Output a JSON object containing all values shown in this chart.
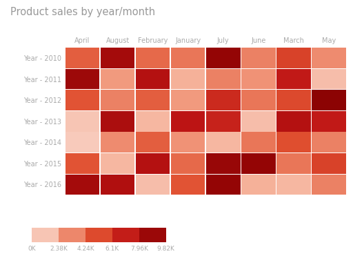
{
  "title": "Product sales by year/month",
  "columns": [
    "April",
    "August",
    "February",
    "January",
    "July",
    "June",
    "March",
    "May"
  ],
  "rows": [
    "Year - 2010",
    "Year - 2011",
    "Year - 2012",
    "Year - 2013",
    "Year - 2014",
    "Year - 2015",
    "Year - 2016"
  ],
  "values": [
    [
      4500,
      8500,
      4200,
      3800,
      9200,
      3500,
      5500,
      3200
    ],
    [
      8800,
      2800,
      7800,
      2000,
      3500,
      3000,
      7200,
      1500
    ],
    [
      4800,
      3500,
      4500,
      2800,
      6500,
      3800,
      5200,
      9500
    ],
    [
      1200,
      8200,
      1800,
      7500,
      6800,
      1500,
      7800,
      7200
    ],
    [
      1000,
      3200,
      4500,
      3000,
      1800,
      3800,
      5000,
      3500
    ],
    [
      4800,
      1800,
      7800,
      4200,
      9000,
      9200,
      3800,
      5500
    ],
    [
      8500,
      8000,
      1500,
      4800,
      9200,
      2000,
      1800,
      3500
    ]
  ],
  "vmin": 0,
  "vmax": 9820,
  "colorbar_ticks": [
    0,
    2380,
    4240,
    6100,
    7960,
    9820
  ],
  "colorbar_labels": [
    "0K",
    "2.38K",
    "4.24K",
    "6.1K",
    "7.96K",
    "9.82K"
  ],
  "background_color": "#ffffff",
  "title_color": "#999999",
  "label_color": "#aaaaaa",
  "cmap_colors": [
    "#fae4dc",
    "#f4a58a",
    "#e05030",
    "#bf1515",
    "#850000"
  ]
}
